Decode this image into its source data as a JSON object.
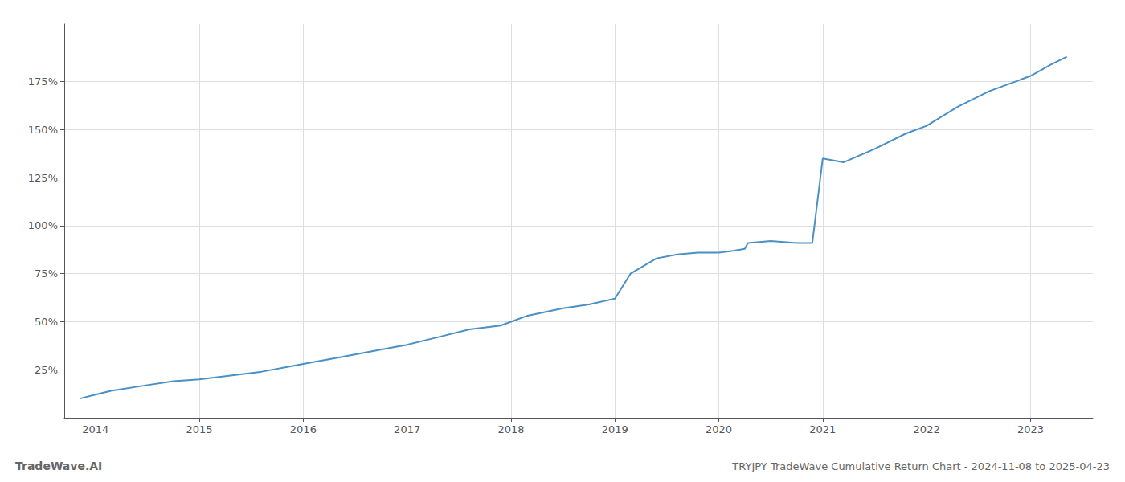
{
  "chart_data": {
    "type": "line",
    "title": "TRYJPY TradeWave Cumulative Return Chart - 2024-11-08 to 2025-04-23",
    "annotations": [
      "TradeWave.AI"
    ],
    "x": [
      2013.85,
      2014.0,
      2014.15,
      2014.5,
      2014.75,
      2015.0,
      2015.3,
      2015.6,
      2015.9,
      2016.0,
      2016.3,
      2016.6,
      2016.9,
      2017.0,
      2017.3,
      2017.6,
      2017.9,
      2018.0,
      2018.15,
      2018.5,
      2018.75,
      2019.0,
      2019.15,
      2019.4,
      2019.6,
      2019.8,
      2020.0,
      2020.15,
      2020.25,
      2020.28,
      2020.5,
      2020.75,
      2020.9,
      2021.0,
      2021.2,
      2021.5,
      2021.8,
      2022.0,
      2022.3,
      2022.6,
      2022.9,
      2023.0,
      2023.2,
      2023.35
    ],
    "values": [
      10,
      12,
      14,
      17,
      19,
      20,
      22,
      24,
      27,
      28,
      31,
      34,
      37,
      38,
      42,
      46,
      48,
      50,
      53,
      57,
      59,
      62,
      75,
      83,
      85,
      86,
      86,
      87,
      88,
      91,
      92,
      91,
      91,
      135,
      133,
      140,
      148,
      152,
      162,
      170,
      176,
      178,
      184,
      188
    ],
    "color": "#4a90c4",
    "xlim": [
      2013.7,
      2023.6
    ],
    "xticks": [
      2014,
      2015,
      2016,
      2017,
      2018,
      2019,
      2020,
      2021,
      2022,
      2023
    ],
    "ylim": [
      0,
      205
    ],
    "yticks": [
      {
        "value": 25,
        "label": "25%"
      },
      {
        "value": 50,
        "label": "50%"
      },
      {
        "value": 75,
        "label": "75%"
      },
      {
        "value": 100,
        "label": "100%"
      },
      {
        "value": 125,
        "label": "125%"
      },
      {
        "value": 150,
        "label": "150%"
      },
      {
        "value": 175,
        "label": "175%"
      }
    ],
    "grid": true
  }
}
